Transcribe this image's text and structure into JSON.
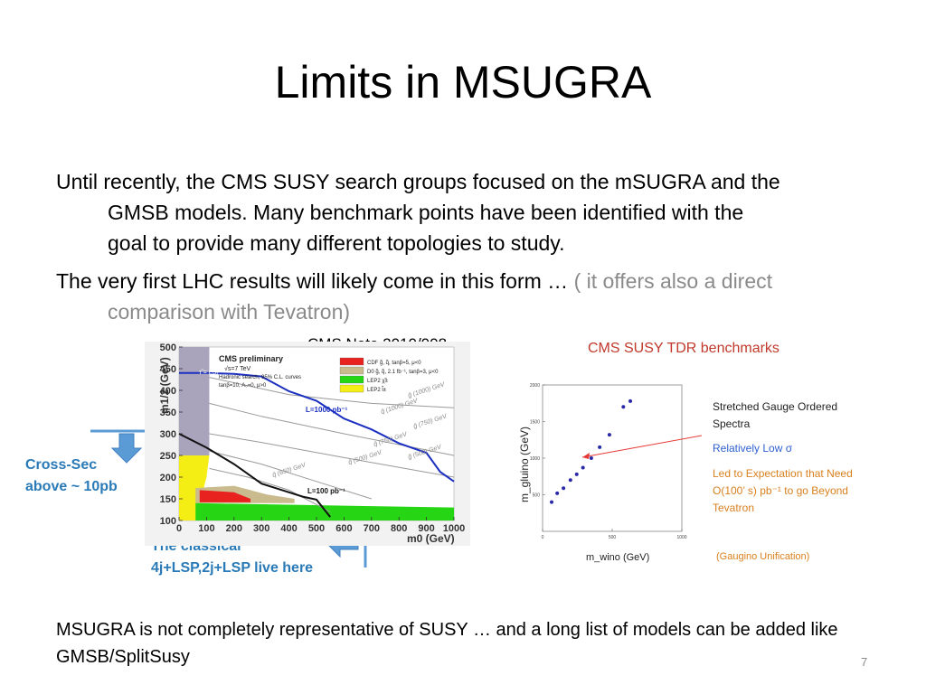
{
  "slide": {
    "title": "Limits in MSUGRA",
    "bullet1_line1": "Until recently, the CMS SUSY search groups focused on the mSUGRA and the",
    "bullet1_line2": "GMSB models. Many benchmark points have been identified with the",
    "bullet1_line3": "goal to provide many different topologies to study.",
    "bullet2_main": "The very first LHC results will likely come in this form …",
    "bullet2_gray1": " ( it offers also a direct",
    "bullet2_gray2": "comparison with Tevatron)",
    "cms_note": "CMS Note 2010/008",
    "tdr_label": "CMS SUSY  TDR benchmarks",
    "cross_sec_line1": "Cross-Sec",
    "cross_sec_line2": "above ~ 10pb",
    "classical_line1": "The classical",
    "classical_line2": "4j+LSP,2j+LSP live here",
    "footer": " MSUGRA  is not completely representative of SUSY … and a long list of models can be added like GMSB/SplitSusy",
    "page_number": "7"
  },
  "colors": {
    "tdr_red": "#c0392b",
    "annotation_blue": "#2a7ab8",
    "arrow_blue": "#5b9bd5",
    "orange_text": "#d9801f"
  },
  "chart_data": [
    {
      "type": "line",
      "title": "CMS preliminary",
      "subtitle_lines": [
        "√s=7 TeV",
        "Hadronic search, 95% C.L. curves",
        "tanβ=10, A₀=0, μ>0"
      ],
      "xlabel": "m0 (GeV)",
      "ylabel": "m1/2 (GeV)",
      "xlim": [
        0,
        1000
      ],
      "ylim": [
        100,
        500
      ],
      "xticks": [
        "0",
        "100",
        "200",
        "300",
        "400",
        "500",
        "600",
        "700",
        "800",
        "900",
        "1000"
      ],
      "yticks": [
        "100",
        "150",
        "200",
        "250",
        "300",
        "350",
        "400",
        "450",
        "500"
      ],
      "lsp_region_label": "τ̃ = LSP",
      "legend": [
        {
          "label": "CDF  g̃, q̃, tanβ=5, μ<0",
          "color": "#e8231f"
        },
        {
          "label": "D0  g̃, q̃, 2.1 fb⁻¹, tanβ=3, μ<0",
          "color": "#c9bb8d"
        },
        {
          "label": "LEP2  χ̃±",
          "color": "#26d615"
        },
        {
          "label": "LEP2  l̃±",
          "color": "#f4ee14"
        }
      ],
      "series": [
        {
          "name": "L=1000 pb⁻¹",
          "color": "#1b2fc0",
          "x": [
            0,
            100,
            200,
            300,
            400,
            500,
            600,
            700,
            800,
            900,
            950,
            1000
          ],
          "y": [
            440,
            440,
            438,
            432,
            398,
            376,
            335,
            310,
            278,
            256,
            212,
            190
          ]
        },
        {
          "name": "L=100 pb⁻¹",
          "color": "#111111",
          "x": [
            0,
            100,
            200,
            300,
            400,
            450,
            500,
            550
          ],
          "y": [
            300,
            268,
            230,
            185,
            165,
            155,
            148,
            108
          ]
        }
      ],
      "mass_contours": [
        "g̃ (1000) GeV",
        "q̃ (1000) GeV",
        "g̃ (750) GeV",
        "q̃ (750) GeV",
        "g̃ (500) GeV",
        "q̃ (500) GeV",
        "q̃ (650) GeV"
      ]
    },
    {
      "type": "scatter",
      "xlabel": "m_wino  (GeV)",
      "ylabel": "m_gluino  (GeV)",
      "xlim": [
        0,
        1000
      ],
      "ylim": [
        0,
        2000
      ],
      "yticks": [
        "500",
        "1000",
        "1500",
        "2000"
      ],
      "xticks": [
        "0",
        "500",
        "1000"
      ],
      "series": [
        {
          "name": "",
          "color": "#2a2aa8",
          "x": [
            65,
            105,
            150,
            200,
            245,
            290,
            350,
            410,
            480,
            580,
            630
          ],
          "y": [
            400,
            520,
            590,
            700,
            780,
            870,
            1000,
            1150,
            1320,
            1700,
            1780
          ]
        }
      ],
      "annotations": [
        {
          "text": "Stretched Gauge Ordered",
          "color": "#222222"
        },
        {
          "text": "Spectra",
          "color": "#222222"
        },
        {
          "text": "Relatively Low σ",
          "color": "#2e5fd0"
        },
        {
          "text": "Led to Expectation that Need",
          "color": "#d9801f"
        },
        {
          "text": "O(100’ s) pb⁻¹   to go Beyond",
          "color": "#d9801f"
        },
        {
          "text": "Tevatron",
          "color": "#d9801f"
        },
        {
          "text": "(Gaugino Unification)",
          "color": "#d9801f"
        }
      ]
    }
  ]
}
